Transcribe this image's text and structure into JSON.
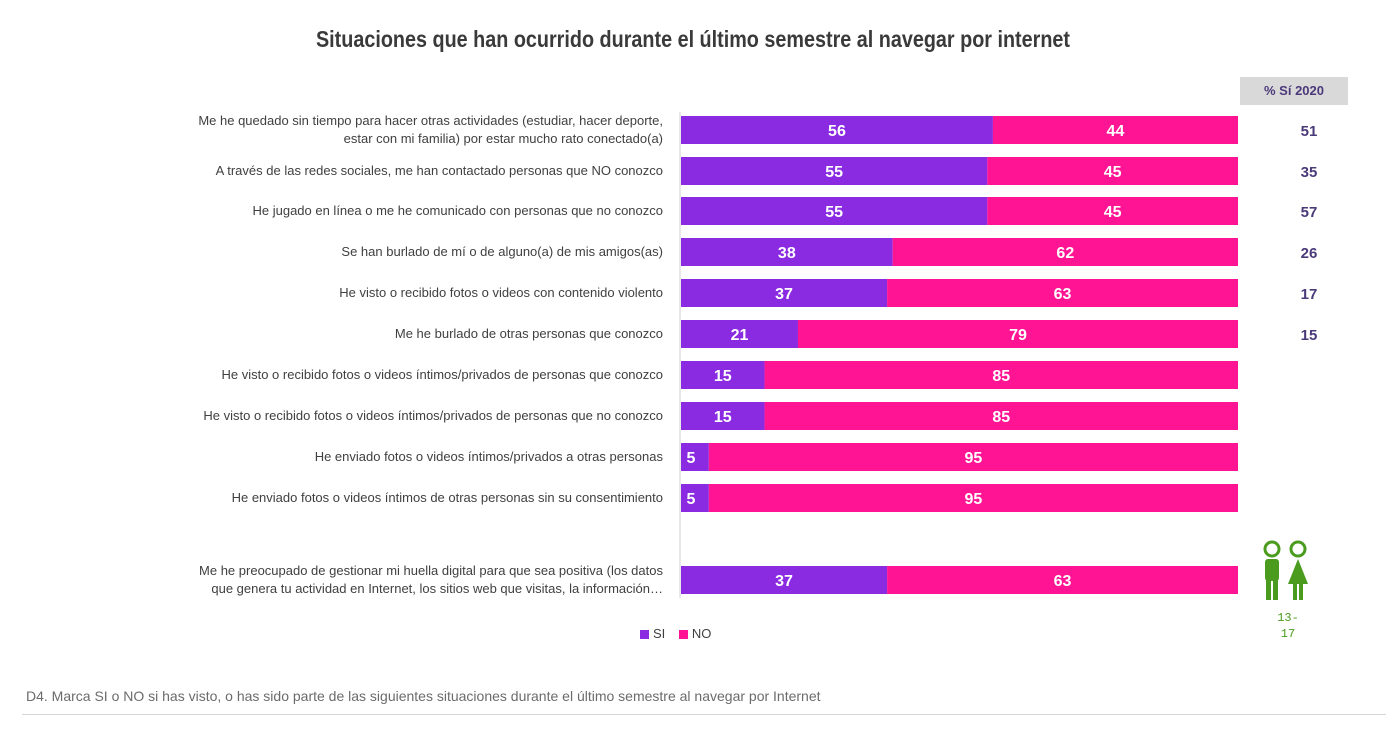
{
  "colors": {
    "si": "#8a2be2",
    "no": "#ff1493",
    "value_text": "#ffffff",
    "si2020": "#4b3a7a",
    "age_icon": "#4a9b1e"
  },
  "header_2020": "% Sí 2020",
  "age_label": "13-\n17",
  "footnote": "D4. Marca SI o NO si has visto, o has sido parte de las siguientes situaciones durante el último semestre al navegar por Internet",
  "chart_data": {
    "type": "bar",
    "orientation": "horizontal",
    "stacked": true,
    "title": "Situaciones que han ocurrido durante el último semestre al navegar por internet",
    "legend": [
      "SI",
      "NO"
    ],
    "legend_position": "bottom",
    "categories": [
      "Me he quedado sin tiempo para hacer otras actividades (estudiar, hacer deporte, estar con mi familia) por estar mucho rato conectado(a)",
      "A través de las redes sociales, me han contactado personas que NO conozco",
      "He jugado en línea o me he comunicado con personas que no conozco",
      "Se han burlado de mí o de alguno(a) de mis amigos(as)",
      "He visto o recibido fotos o videos con contenido violento",
      "Me he burlado de otras personas que conozco",
      "He visto o recibido fotos o videos íntimos/privados de personas que conozco",
      "He visto o recibido fotos o videos íntimos/privados de personas que no conozco",
      "He enviado fotos o videos íntimos/privados a otras personas",
      "He enviado fotos o videos íntimos de otras personas sin su consentimiento",
      "Me he preocupado de gestionar mi huella digital para que sea positiva (los datos que genera tu actividad en Internet, los sitios web que visitas, la información…"
    ],
    "series": [
      {
        "name": "SI",
        "values": [
          56,
          55,
          55,
          38,
          37,
          21,
          15,
          15,
          5,
          5,
          37
        ]
      },
      {
        "name": "NO",
        "values": [
          44,
          45,
          45,
          62,
          63,
          79,
          85,
          85,
          95,
          95,
          63
        ]
      }
    ],
    "si_2020": [
      "51",
      "35",
      "57",
      "26",
      "17",
      "15",
      "",
      "",
      "",
      "",
      ""
    ],
    "xlim": [
      0,
      100
    ]
  }
}
